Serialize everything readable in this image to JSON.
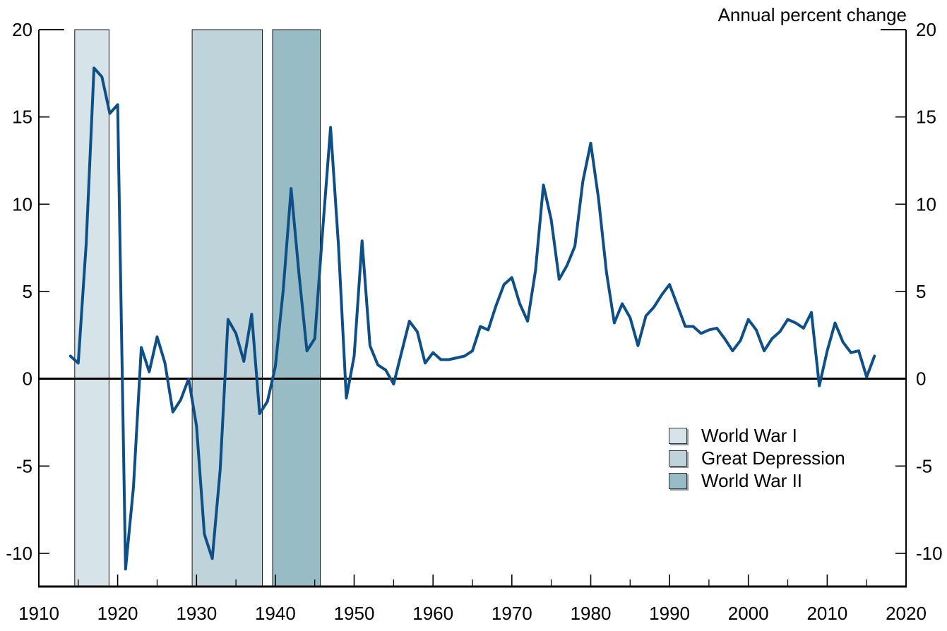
{
  "title": "Annual percent change",
  "colors": {
    "background": "#ffffff",
    "axis": "#000000",
    "line": "#0d4f86",
    "band_wwi": "#d6e3e9",
    "band_great_depression": "#bfd4da",
    "band_wwii": "#98bcc5"
  },
  "legend": {
    "items": [
      {
        "label": "World War I",
        "color": "#d6e3e9"
      },
      {
        "label": "Great Depression",
        "color": "#bfd4da"
      },
      {
        "label": "World War II",
        "color": "#98bcc5"
      }
    ]
  },
  "chart_data": {
    "type": "line",
    "title": "Annual percent change",
    "xlabel": "",
    "ylabel": "Annual percent change",
    "xlim": [
      1910,
      2020
    ],
    "ylim": [
      -11.9,
      20
    ],
    "grid": false,
    "zero_line": true,
    "legend_position": "lower-right",
    "x_axis": {
      "major_tick_labels": [
        "1910",
        "1920",
        "1930",
        "1940",
        "1950",
        "1960",
        "1970",
        "1980",
        "1990",
        "2000",
        "2010",
        "2020"
      ],
      "major_tick_values": [
        1910,
        1920,
        1930,
        1940,
        1950,
        1960,
        1970,
        1980,
        1990,
        2000,
        2010,
        2020
      ],
      "minor_tick_step": 5
    },
    "y_axis": {
      "tick_values": [
        -10,
        -5,
        0,
        5,
        10,
        15,
        20
      ],
      "tick_labels": [
        "-10",
        "-5",
        "0",
        "5",
        "10",
        "15",
        "20"
      ],
      "label_sides": "both"
    },
    "shaded_regions": [
      {
        "label": "World War I",
        "start": 1914.55,
        "end": 1918.9,
        "color": "#d6e3e9"
      },
      {
        "label": "Great Depression",
        "start": 1929.45,
        "end": 1938.35,
        "color": "#bfd4da"
      },
      {
        "label": "World War II",
        "start": 1939.65,
        "end": 1945.7,
        "color": "#98bcc5"
      }
    ],
    "series": [
      {
        "name": "Annual percent change",
        "color": "#0d4f86",
        "start_year": 1914,
        "end_year": 2016,
        "values": [
          1.3,
          0.9,
          7.7,
          17.8,
          17.3,
          15.2,
          15.7,
          -10.9,
          -6.2,
          1.8,
          0.4,
          2.4,
          0.9,
          -1.9,
          -1.2,
          0.0,
          -2.7,
          -8.9,
          -10.3,
          -5.2,
          3.4,
          2.6,
          1.0,
          3.7,
          -2.0,
          -1.3,
          0.7,
          5.1,
          10.9,
          6.0,
          1.6,
          2.3,
          8.5,
          14.4,
          7.7,
          -1.1,
          1.3,
          7.9,
          1.9,
          0.8,
          0.5,
          -0.3,
          1.5,
          3.3,
          2.7,
          0.9,
          1.5,
          1.1,
          1.1,
          1.2,
          1.3,
          1.6,
          3.0,
          2.8,
          4.2,
          5.4,
          5.8,
          4.3,
          3.3,
          6.2,
          11.1,
          9.1,
          5.7,
          6.5,
          7.6,
          11.3,
          13.5,
          10.3,
          6.1,
          3.2,
          4.3,
          3.5,
          1.9,
          3.6,
          4.1,
          4.8,
          5.4,
          4.2,
          3.0,
          3.0,
          2.6,
          2.8,
          2.9,
          2.3,
          1.6,
          2.2,
          3.4,
          2.8,
          1.6,
          2.3,
          2.7,
          3.4,
          3.2,
          2.9,
          3.8,
          -0.4,
          1.6,
          3.2,
          2.1,
          1.5,
          1.6,
          0.1,
          1.3
        ]
      }
    ]
  }
}
